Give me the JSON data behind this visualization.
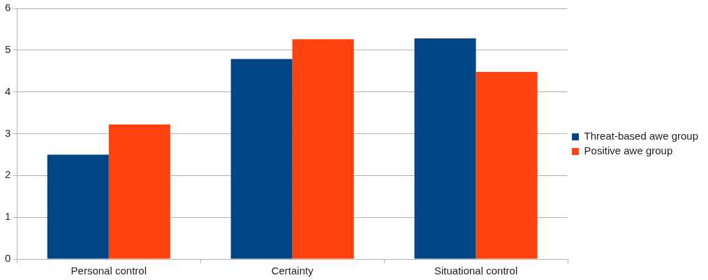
{
  "chart_data": {
    "type": "bar",
    "categories": [
      "Personal control",
      "Certainty",
      "Situational control"
    ],
    "series": [
      {
        "name": "Threat-based awe group",
        "color": "#004586",
        "values": [
          2.5,
          4.79,
          5.28
        ]
      },
      {
        "name": "Positive awe group",
        "color": "#ff420e",
        "values": [
          3.22,
          5.26,
          4.48
        ]
      }
    ],
    "ylim": [
      0,
      6
    ],
    "yticks": [
      0,
      1,
      2,
      3,
      4,
      5,
      6
    ],
    "grid": "y",
    "legend": "right"
  }
}
